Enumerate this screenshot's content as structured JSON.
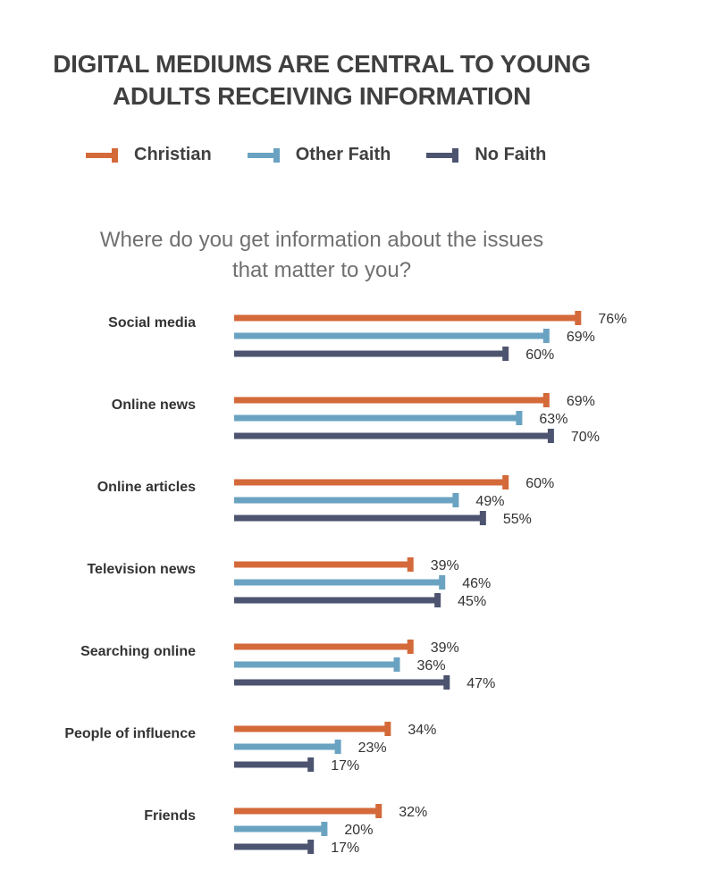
{
  "chart_data": {
    "type": "bar",
    "orientation": "horizontal",
    "title": [
      "DIGITAL MEDIUMS ARE CENTRAL TO YOUNG",
      "ADULTS RECEIVING INFORMATION"
    ],
    "subtitle": [
      "Where do you get information about the issues",
      "that matter to you?"
    ],
    "categories": [
      "Social media",
      "Online news",
      "Online articles",
      "Television news",
      "Searching online",
      "People of influence",
      "Friends"
    ],
    "series": [
      {
        "name": "Christian",
        "color": "#D4693A",
        "values": [
          76,
          69,
          60,
          39,
          39,
          34,
          32
        ]
      },
      {
        "name": "Other Faith",
        "color": "#6AA3C1",
        "values": [
          69,
          63,
          49,
          46,
          36,
          23,
          20
        ]
      },
      {
        "name": "No Faith",
        "color": "#4D5470",
        "values": [
          60,
          70,
          55,
          45,
          47,
          17,
          17
        ]
      }
    ],
    "value_suffix": "%",
    "xlim": [
      0,
      100
    ],
    "legend_position": "top-left",
    "grid": false
  }
}
